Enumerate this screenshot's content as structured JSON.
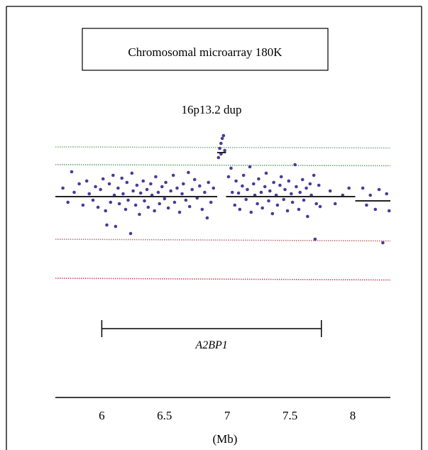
{
  "chart_data": {
    "type": "scatter",
    "title": "Chromosomal microarray 180K",
    "subtitle": "16p13.2 dup",
    "xlabel": "(Mb)",
    "xlim": [
      5.63,
      8.3
    ],
    "ylim": [
      -1.35,
      0.95
    ],
    "xticks": [
      6,
      6.5,
      7,
      7.5,
      8
    ],
    "tick_labels": [
      "6",
      "6.5",
      "7",
      "7.5",
      "8"
    ],
    "grid": false,
    "colors": {
      "points": "#4b3b9a",
      "upper_outer_line": "#7fb58a",
      "upper_inner_line": "#6aa274",
      "lower_inner_line": "#b8757f",
      "lower_outer_line": "#c94a62",
      "segment": "#222222"
    },
    "reference_lines": [
      0.7,
      0.45,
      -0.6,
      -1.15
    ],
    "segments": [
      {
        "x": [
          5.63,
          6.92
        ],
        "y": 0.0
      },
      {
        "x": [
          6.92,
          6.99
        ],
        "y": 0.62
      },
      {
        "x": [
          6.99,
          8.02
        ],
        "y": 0.0
      },
      {
        "x": [
          8.02,
          8.3
        ],
        "y": -0.06
      }
    ],
    "gene_region": {
      "name": "A2BP1",
      "x": [
        6.0,
        7.75
      ]
    },
    "points": [
      [
        5.69,
        0.12
      ],
      [
        5.73,
        -0.08
      ],
      [
        5.76,
        0.35
      ],
      [
        5.78,
        0.06
      ],
      [
        5.82,
        0.18
      ],
      [
        5.85,
        -0.12
      ],
      [
        5.88,
        0.22
      ],
      [
        5.9,
        0.04
      ],
      [
        5.93,
        -0.05
      ],
      [
        5.95,
        0.14
      ],
      [
        5.97,
        -0.15
      ],
      [
        5.99,
        0.1
      ],
      [
        6.01,
        0.25
      ],
      [
        6.03,
        -0.2
      ],
      [
        6.04,
        -0.4
      ],
      [
        6.06,
        0.18
      ],
      [
        6.07,
        -0.08
      ],
      [
        6.09,
        0.3
      ],
      [
        6.1,
        0.02
      ],
      [
        6.11,
        -0.42
      ],
      [
        6.13,
        0.12
      ],
      [
        6.14,
        -0.1
      ],
      [
        6.16,
        0.26
      ],
      [
        6.17,
        0.04
      ],
      [
        6.19,
        -0.18
      ],
      [
        6.2,
        0.2
      ],
      [
        6.21,
        -0.05
      ],
      [
        6.23,
        -0.52
      ],
      [
        6.24,
        0.33
      ],
      [
        6.25,
        0.08
      ],
      [
        6.27,
        -0.12
      ],
      [
        6.28,
        0.16
      ],
      [
        6.3,
        -0.25
      ],
      [
        6.31,
        0.05
      ],
      [
        6.33,
        0.22
      ],
      [
        6.34,
        -0.06
      ],
      [
        6.36,
        0.1
      ],
      [
        6.37,
        -0.15
      ],
      [
        6.39,
        0.18
      ],
      [
        6.4,
        0.02
      ],
      [
        6.42,
        -0.2
      ],
      [
        6.43,
        0.28
      ],
      [
        6.45,
        0.06
      ],
      [
        6.46,
        -0.1
      ],
      [
        6.48,
        0.14
      ],
      [
        6.5,
        -0.03
      ],
      [
        6.51,
        0.2
      ],
      [
        6.53,
        -0.16
      ],
      [
        6.55,
        0.08
      ],
      [
        6.57,
        0.3
      ],
      [
        6.58,
        -0.08
      ],
      [
        6.6,
        0.12
      ],
      [
        6.62,
        -0.22
      ],
      [
        6.64,
        0.04
      ],
      [
        6.65,
        0.18
      ],
      [
        6.67,
        -0.05
      ],
      [
        6.69,
        0.34
      ],
      [
        6.7,
        -0.14
      ],
      [
        6.72,
        0.1
      ],
      [
        6.74,
        0.24
      ],
      [
        6.76,
        -0.02
      ],
      [
        6.78,
        0.15
      ],
      [
        6.8,
        -0.18
      ],
      [
        6.82,
        0.06
      ],
      [
        6.84,
        -0.3
      ],
      [
        6.85,
        0.2
      ],
      [
        6.87,
        -0.08
      ],
      [
        6.89,
        0.12
      ],
      [
        6.93,
        0.55
      ],
      [
        6.94,
        0.68
      ],
      [
        6.95,
        0.75
      ],
      [
        6.96,
        0.82
      ],
      [
        6.97,
        0.86
      ],
      [
        6.95,
        0.6
      ],
      [
        6.98,
        0.65
      ],
      [
        7.01,
        0.28
      ],
      [
        7.03,
        0.4
      ],
      [
        7.04,
        0.06
      ],
      [
        7.06,
        -0.12
      ],
      [
        7.07,
        0.22
      ],
      [
        7.09,
        0.05
      ],
      [
        7.1,
        -0.18
      ],
      [
        7.12,
        0.15
      ],
      [
        7.13,
        0.3
      ],
      [
        7.15,
        -0.04
      ],
      [
        7.16,
        0.1
      ],
      [
        7.18,
        0.42
      ],
      [
        7.19,
        -0.22
      ],
      [
        7.21,
        0.18
      ],
      [
        7.22,
        0.02
      ],
      [
        7.24,
        -0.1
      ],
      [
        7.25,
        0.25
      ],
      [
        7.27,
        0.06
      ],
      [
        7.28,
        -0.16
      ],
      [
        7.3,
        0.14
      ],
      [
        7.31,
        0.33
      ],
      [
        7.33,
        -0.06
      ],
      [
        7.34,
        0.08
      ],
      [
        7.36,
        -0.24
      ],
      [
        7.37,
        0.2
      ],
      [
        7.39,
        0.02
      ],
      [
        7.4,
        -0.12
      ],
      [
        7.42,
        0.16
      ],
      [
        7.43,
        0.28
      ],
      [
        7.45,
        -0.04
      ],
      [
        7.46,
        0.1
      ],
      [
        7.48,
        -0.2
      ],
      [
        7.49,
        0.22
      ],
      [
        7.51,
        0.04
      ],
      [
        7.52,
        -0.08
      ],
      [
        7.54,
        0.45
      ],
      [
        7.55,
        0.14
      ],
      [
        7.57,
        -0.18
      ],
      [
        7.58,
        0.06
      ],
      [
        7.6,
        0.24
      ],
      [
        7.61,
        -0.05
      ],
      [
        7.63,
        0.12
      ],
      [
        7.64,
        -0.28
      ],
      [
        7.66,
        0.18
      ],
      [
        7.67,
        0.02
      ],
      [
        7.69,
        0.3
      ],
      [
        7.7,
        -0.6
      ],
      [
        7.71,
        -0.1
      ],
      [
        7.73,
        0.16
      ],
      [
        7.74,
        -0.14
      ],
      [
        7.82,
        0.08
      ],
      [
        7.86,
        -0.1
      ],
      [
        7.92,
        0.02
      ],
      [
        7.97,
        0.12
      ],
      [
        8.08,
        0.12
      ],
      [
        8.11,
        -0.12
      ],
      [
        8.14,
        0.02
      ],
      [
        8.18,
        -0.18
      ],
      [
        8.21,
        0.1
      ],
      [
        8.24,
        -0.65
      ],
      [
        8.27,
        0.04
      ],
      [
        8.29,
        -0.2
      ]
    ]
  }
}
